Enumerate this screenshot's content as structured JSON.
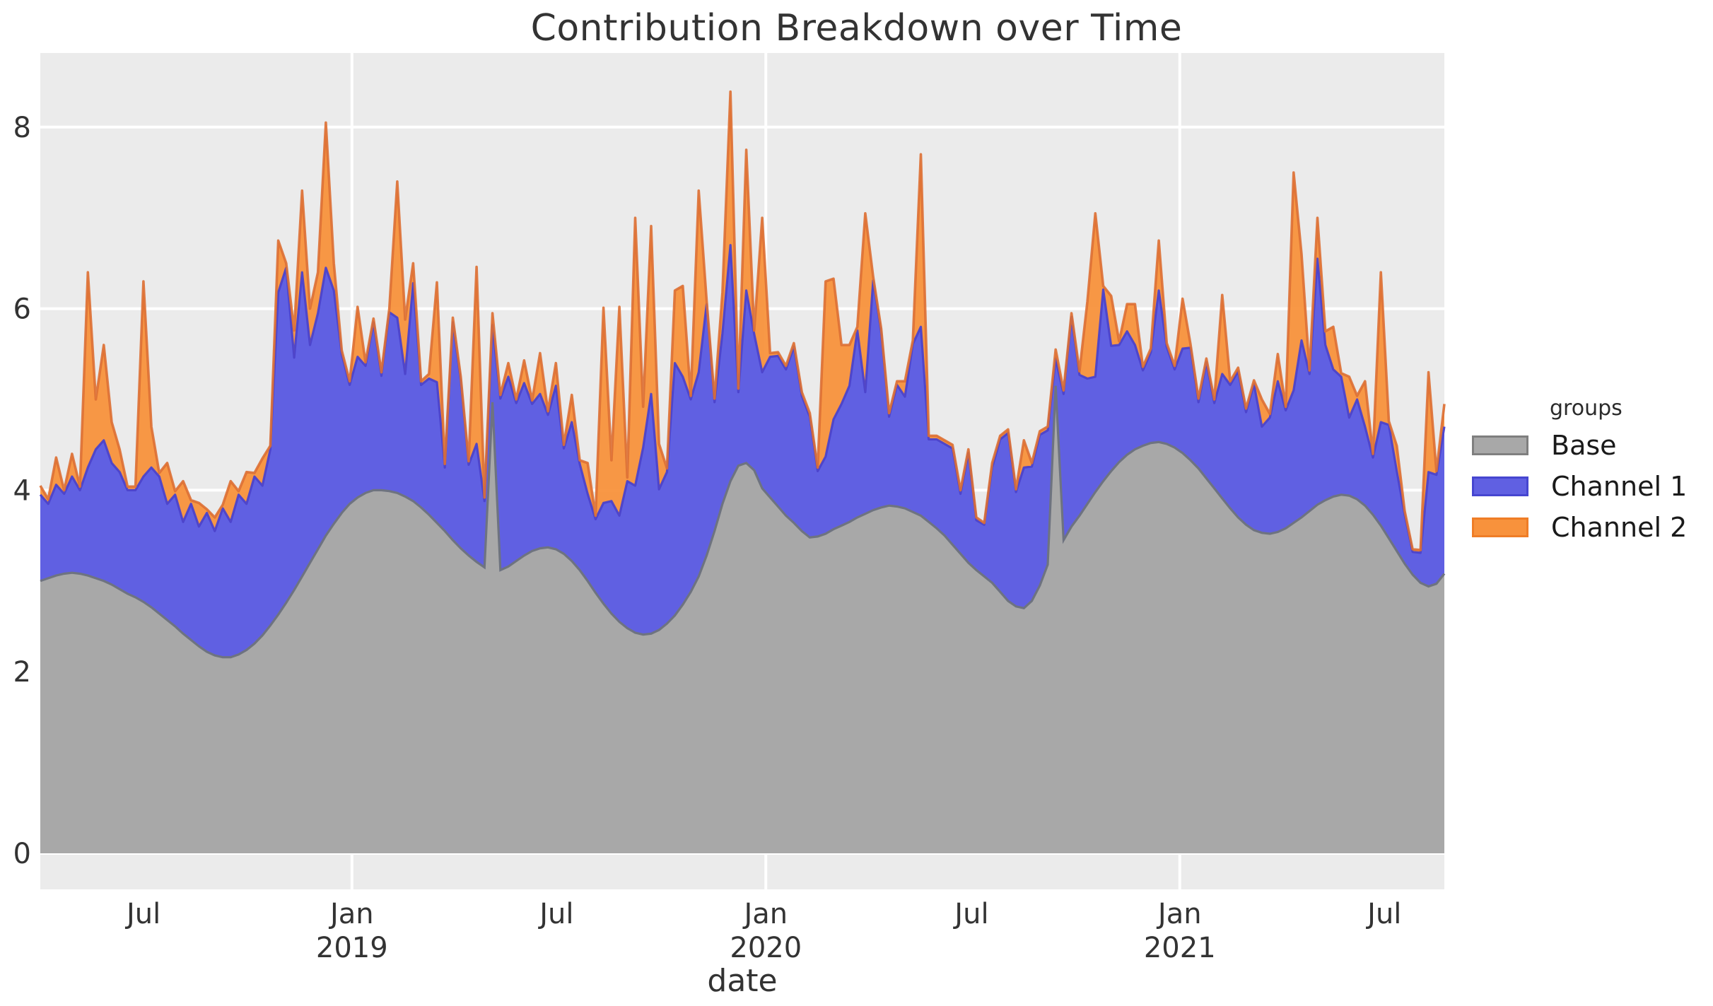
{
  "title": "Contribution Breakdown over Time",
  "axes": {
    "x_label": "date",
    "y_ticks": [
      {
        "v": 0,
        "label": "0"
      },
      {
        "v": 2,
        "label": "2"
      },
      {
        "v": 4,
        "label": "4"
      },
      {
        "v": 6,
        "label": "6"
      },
      {
        "v": 8,
        "label": "8"
      }
    ],
    "x_ticks": [
      {
        "label": "Jul",
        "year": "",
        "t": 2018.4966,
        "grid": false
      },
      {
        "label": "Jan",
        "year": "2019",
        "t": 2019.0,
        "grid": true
      },
      {
        "label": "Jul",
        "year": "",
        "t": 2019.4945,
        "grid": false
      },
      {
        "label": "Jan",
        "year": "2020",
        "t": 2020.0,
        "grid": true
      },
      {
        "label": "Jul",
        "year": "",
        "t": 2020.4973,
        "grid": false
      },
      {
        "label": "Jan",
        "year": "2021",
        "t": 2021.0,
        "grid": true
      },
      {
        "label": "Jul",
        "year": "",
        "t": 2021.4945,
        "grid": false
      }
    ]
  },
  "legend": {
    "title": "groups",
    "items": [
      {
        "label": "Base",
        "fill": "#a8a8a8",
        "stroke": "#7f7f7f"
      },
      {
        "label": "Channel 1",
        "fill": "#6060e2",
        "stroke": "#4646d0"
      },
      {
        "label": "Channel 2",
        "fill": "#f8923c",
        "stroke": "#ef7d26"
      }
    ]
  },
  "colors": {
    "panel_bg": "#ebebeb",
    "grid": "#ffffff",
    "base_fill": "#a8a8a8",
    "base_line": "#6e7380",
    "ch1_fill": "#6060e2",
    "ch1_line": "#4b42cb",
    "ch2_fill": "#f8923c",
    "ch2_line": "#dd6f33",
    "text": "#333333"
  },
  "chart_data": {
    "type": "area",
    "stacked": true,
    "title": "Contribution Breakdown over Time",
    "xlabel": "date",
    "ylabel": "",
    "x_unit": "weekly",
    "start_date": "2018-04-01",
    "x_domain_years": [
      2018.2471,
      2021.6392
    ],
    "ylim": [
      -0.4,
      8.82
    ],
    "y_ticks": [
      0,
      2,
      4,
      6,
      8
    ],
    "grid": "white-on-gray",
    "legend_position": "right",
    "series": [
      {
        "name": "Base",
        "values": [
          3.0,
          3.03,
          3.06,
          3.08,
          3.09,
          3.08,
          3.06,
          3.03,
          3.0,
          2.96,
          2.91,
          2.86,
          2.82,
          2.77,
          2.71,
          2.64,
          2.57,
          2.5,
          2.42,
          2.35,
          2.28,
          2.22,
          2.18,
          2.16,
          2.16,
          2.19,
          2.24,
          2.31,
          2.4,
          2.51,
          2.63,
          2.76,
          2.9,
          3.05,
          3.2,
          3.35,
          3.5,
          3.63,
          3.75,
          3.85,
          3.92,
          3.97,
          4.0,
          4.0,
          3.99,
          3.97,
          3.93,
          3.88,
          3.81,
          3.73,
          3.64,
          3.55,
          3.45,
          3.36,
          3.28,
          3.21,
          3.15,
          4.97,
          3.12,
          3.16,
          3.22,
          3.28,
          3.33,
          3.36,
          3.37,
          3.35,
          3.3,
          3.22,
          3.12,
          3.0,
          2.87,
          2.75,
          2.64,
          2.55,
          2.48,
          2.43,
          2.41,
          2.42,
          2.46,
          2.53,
          2.62,
          2.74,
          2.88,
          3.05,
          3.28,
          3.55,
          3.85,
          4.1,
          4.27,
          4.3,
          4.22,
          4.02,
          3.92,
          3.82,
          3.72,
          3.64,
          3.55,
          3.48,
          3.49,
          3.52,
          3.57,
          3.61,
          3.65,
          3.7,
          3.74,
          3.78,
          3.81,
          3.83,
          3.82,
          3.8,
          3.76,
          3.72,
          3.65,
          3.58,
          3.5,
          3.4,
          3.3,
          3.2,
          3.12,
          3.05,
          2.98,
          2.88,
          2.78,
          2.72,
          2.7,
          2.78,
          2.95,
          3.18,
          5.15,
          3.45,
          3.6,
          3.72,
          3.85,
          3.98,
          4.1,
          4.21,
          4.31,
          4.39,
          4.45,
          4.49,
          4.52,
          4.53,
          4.51,
          4.47,
          4.41,
          4.33,
          4.24,
          4.13,
          4.02,
          3.91,
          3.8,
          3.7,
          3.62,
          3.56,
          3.53,
          3.52,
          3.54,
          3.58,
          3.64,
          3.7,
          3.77,
          3.84,
          3.89,
          3.93,
          3.95,
          3.94,
          3.9,
          3.83,
          3.73,
          3.61,
          3.47,
          3.33,
          3.19,
          3.07,
          2.98,
          2.94,
          2.97,
          3.08
        ]
      },
      {
        "name": "Channel 1",
        "values": [
          0.95,
          0.82,
          1.0,
          0.88,
          1.06,
          0.92,
          1.19,
          1.42,
          1.55,
          1.34,
          1.29,
          1.14,
          1.18,
          1.38,
          1.54,
          1.51,
          1.28,
          1.45,
          1.23,
          1.5,
          1.32,
          1.53,
          1.37,
          1.64,
          1.49,
          1.76,
          1.61,
          1.84,
          1.65,
          1.94,
          3.55,
          3.69,
          2.56,
          3.35,
          2.4,
          2.6,
          2.95,
          2.57,
          1.75,
          1.31,
          1.55,
          1.4,
          1.85,
          1.26,
          1.97,
          1.93,
          1.35,
          2.4,
          1.35,
          1.5,
          1.55,
          0.7,
          2.4,
          1.85,
          1.0,
          1.3,
          0.73,
          0.85,
          1.89,
          2.09,
          1.74,
          1.9,
          1.62,
          1.7,
          1.46,
          1.8,
          1.16,
          1.53,
          1.17,
          0.96,
          0.81,
          1.11,
          1.24,
          1.17,
          1.62,
          1.62,
          2.06,
          2.64,
          1.55,
          1.67,
          2.78,
          2.51,
          2.12,
          2.25,
          2.77,
          1.42,
          1.88,
          2.6,
          0.81,
          1.9,
          1.5,
          1.28,
          1.55,
          1.66,
          1.61,
          1.94,
          1.49,
          1.33,
          0.72,
          0.85,
          1.21,
          1.34,
          1.5,
          2.06,
          1.34,
          2.53,
          1.93,
          0.98,
          1.34,
          1.23,
          1.85,
          2.08,
          0.91,
          0.98,
          1.01,
          1.06,
          0.66,
          1.21,
          0.55,
          0.57,
          1.27,
          1.68,
          1.85,
          1.26,
          1.55,
          1.48,
          1.66,
          1.48,
          0.3,
          1.61,
          2.31,
          1.55,
          1.38,
          1.27,
          2.11,
          1.38,
          1.29,
          1.36,
          1.15,
          0.83,
          1.0,
          1.67,
          1.07,
          0.86,
          1.15,
          1.24,
          0.73,
          1.28,
          0.94,
          1.37,
          1.36,
          1.61,
          1.24,
          1.61,
          1.17,
          1.28,
          1.66,
          1.3,
          1.46,
          1.95,
          1.51,
          2.71,
          1.71,
          1.4,
          1.3,
          0.86,
          1.1,
          0.87,
          0.63,
          1.14,
          1.25,
          0.88,
          0.54,
          0.25,
          0.33,
          1.26,
          1.2,
          1.62
        ]
      },
      {
        "name": "Channel 2",
        "values": [
          0.1,
          0.05,
          0.3,
          0.04,
          0.25,
          0.04,
          2.15,
          0.55,
          1.05,
          0.45,
          0.25,
          0.04,
          0.04,
          2.15,
          0.45,
          0.04,
          0.45,
          0.04,
          0.45,
          0.04,
          0.26,
          0.04,
          0.15,
          0.04,
          0.45,
          0.04,
          0.35,
          0.04,
          0.3,
          0.04,
          0.57,
          0.05,
          0.3,
          0.9,
          0.4,
          0.45,
          1.6,
          0.3,
          0.04,
          0.04,
          0.55,
          0.04,
          0.04,
          0.04,
          0.04,
          1.5,
          0.6,
          0.22,
          0.04,
          0.05,
          1.1,
          0.04,
          0.05,
          0.04,
          0.04,
          1.95,
          0.04,
          0.13,
          0.04,
          0.15,
          0.04,
          0.25,
          0.04,
          0.45,
          0.04,
          0.25,
          0.04,
          0.3,
          0.04,
          0.34,
          0.04,
          2.15,
          0.45,
          2.3,
          0.04,
          2.95,
          0.45,
          1.85,
          0.5,
          0.04,
          0.8,
          1.0,
          0.04,
          2.0,
          0.04,
          0.04,
          0.45,
          1.69,
          0.04,
          1.55,
          0.04,
          1.7,
          0.04,
          0.04,
          0.04,
          0.04,
          0.04,
          0.04,
          0.04,
          1.93,
          1.55,
          0.65,
          0.45,
          0.04,
          1.97,
          0.04,
          0.04,
          0.04,
          0.04,
          0.17,
          0.04,
          1.9,
          0.04,
          0.04,
          0.04,
          0.04,
          0.04,
          0.04,
          0.03,
          0.02,
          0.05,
          0.04,
          0.04,
          0.03,
          0.3,
          0.04,
          0.04,
          0.04,
          0.1,
          0.04,
          0.04,
          0.04,
          0.85,
          1.8,
          0.04,
          0.55,
          0.04,
          0.3,
          0.45,
          0.04,
          0.04,
          0.55,
          0.04,
          0.04,
          0.55,
          0.04,
          0.04,
          0.04,
          0.04,
          0.87,
          0.04,
          0.04,
          0.04,
          0.04,
          0.3,
          0.04,
          0.3,
          0.04,
          2.4,
          0.95,
          0.04,
          0.45,
          0.15,
          0.47,
          0.04,
          0.45,
          0.04,
          0.5,
          0.04,
          1.65,
          0.04,
          0.28,
          0.04,
          0.03,
          0.03,
          1.1,
          0.04,
          0.25
        ]
      }
    ]
  }
}
